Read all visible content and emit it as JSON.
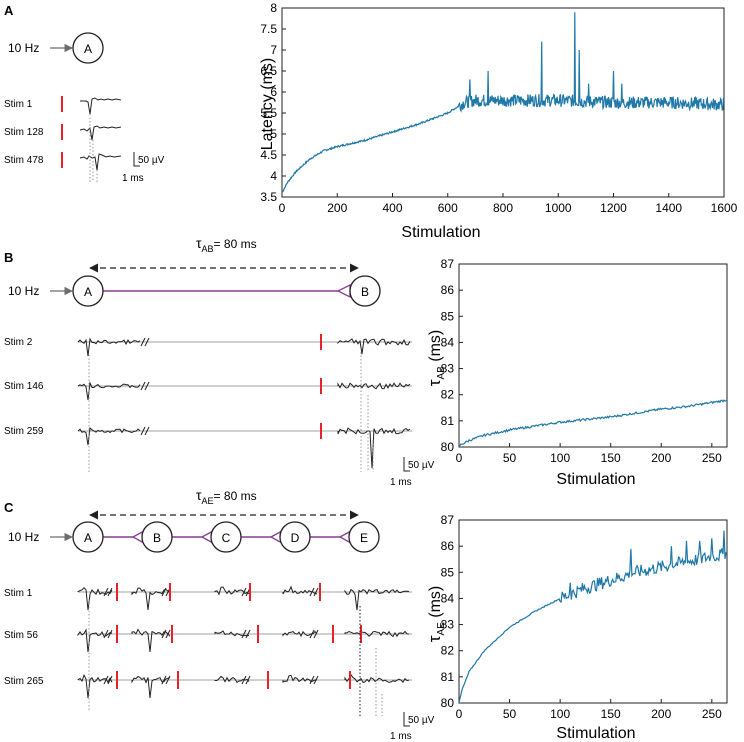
{
  "colors": {
    "series": "#1f78a8",
    "synapse": "#8a3a96",
    "stim": "#e8202a",
    "trace": "#231f20",
    "input_arrow": "#6d6e71"
  },
  "panels": [
    {
      "letter": "A",
      "input": "10 Hz",
      "neurons": [
        "A"
      ],
      "stims": [
        "Stim 1",
        "Stim 128",
        "Stim 478"
      ],
      "scale": {
        "voltage": "50 µV",
        "time": "1 ms"
      }
    },
    {
      "letter": "B",
      "delay": {
        "symbol": "τ",
        "subscript": "AB",
        "value": "= 80 ms"
      },
      "input": "10 Hz",
      "neurons": [
        "A",
        "B"
      ],
      "stims": [
        "Stim 2",
        "Stim 146",
        "Stim 259"
      ],
      "scale": {
        "voltage": "50 µV",
        "time": "1 ms"
      }
    },
    {
      "letter": "C",
      "delay": {
        "symbol": "τ",
        "subscript": "AE",
        "value": "= 80 ms"
      },
      "input": "10 Hz",
      "neurons": [
        "A",
        "B",
        "C",
        "D",
        "E"
      ],
      "stims": [
        "Stim 1",
        "Stim 56",
        "Stim 265"
      ],
      "scale": {
        "voltage": "50 µV",
        "time": "1 ms"
      }
    }
  ],
  "chart_data": [
    {
      "type": "line",
      "panel": "A",
      "xlabel": "Stimulation",
      "ylabel": "Latency (ms)",
      "xlim": [
        0,
        1600
      ],
      "ylim": [
        3.5,
        8
      ],
      "xticks": [
        0,
        200,
        400,
        600,
        800,
        1000,
        1200,
        1400,
        1600
      ],
      "yticks": [
        3.5,
        4,
        4.5,
        5,
        5.5,
        6,
        6.5,
        7,
        7.5,
        8
      ],
      "curve": {
        "x": [
          0,
          20,
          50,
          100,
          150,
          200,
          300,
          400,
          500,
          600,
          660,
          700,
          800,
          1000,
          1200,
          1400,
          1600
        ],
        "y": [
          3.6,
          3.85,
          4.1,
          4.4,
          4.6,
          4.7,
          4.85,
          5.05,
          5.25,
          5.5,
          5.75,
          5.8,
          5.8,
          5.8,
          5.75,
          5.75,
          5.7
        ]
      },
      "spikes": {
        "x": [
          680,
          745,
          940,
          1060,
          1075,
          1110,
          1200,
          1230
        ],
        "y": [
          6.3,
          6.5,
          7.2,
          7.9,
          7.0,
          6.2,
          6.5,
          6.2
        ]
      },
      "noise_start": 640,
      "noise_amp": 0.15
    },
    {
      "type": "line",
      "panel": "B",
      "xlabel": "Stimulation",
      "ylabel": "τAB (ms)",
      "ylabel_symbol": "τ",
      "ylabel_sub": "AB",
      "ylabel_unit": " (ms)",
      "xlim": [
        0,
        265
      ],
      "ylim": [
        80,
        87
      ],
      "xticks": [
        0,
        50,
        100,
        150,
        200,
        250
      ],
      "yticks": [
        80,
        81,
        82,
        83,
        84,
        85,
        86,
        87
      ],
      "curve": {
        "x": [
          0,
          10,
          25,
          50,
          75,
          100,
          125,
          150,
          175,
          200,
          225,
          250,
          265
        ],
        "y": [
          80.05,
          80.25,
          80.45,
          80.65,
          80.8,
          80.95,
          81.05,
          81.15,
          81.3,
          81.45,
          81.55,
          81.7,
          81.8
        ]
      },
      "spikes": {
        "x": [],
        "y": []
      },
      "noise_start": 0,
      "noise_amp": 0.04
    },
    {
      "type": "line",
      "panel": "C",
      "xlabel": "Stimulation",
      "ylabel": "τAE (ms)",
      "ylabel_symbol": "τ",
      "ylabel_sub": "AE",
      "ylabel_unit": " (ms)",
      "xlim": [
        0,
        265
      ],
      "ylim": [
        80,
        87
      ],
      "xticks": [
        0,
        50,
        100,
        150,
        200,
        250
      ],
      "yticks": [
        80,
        81,
        82,
        83,
        84,
        85,
        86,
        87
      ],
      "curve": {
        "x": [
          0,
          3,
          10,
          25,
          50,
          75,
          100,
          125,
          150,
          175,
          200,
          225,
          250,
          265
        ],
        "y": [
          80.0,
          80.5,
          81.2,
          82.0,
          82.9,
          83.5,
          84.0,
          84.4,
          84.7,
          85.0,
          85.2,
          85.4,
          85.6,
          85.7
        ]
      },
      "spikes": {
        "x": [
          110,
          170,
          210,
          225,
          238,
          250,
          262
        ],
        "y": [
          84.6,
          85.9,
          86.0,
          86.2,
          86.2,
          86.3,
          86.6
        ]
      },
      "noise_start": 100,
      "noise_amp": 0.25
    }
  ]
}
